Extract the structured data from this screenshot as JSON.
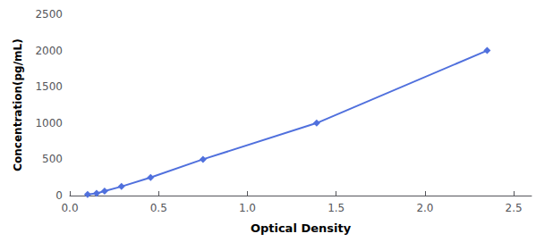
{
  "chart_data": {
    "type": "line",
    "xlabel": "Optical Density",
    "ylabel": "Concentration(pg/mL)",
    "x": [
      0.1,
      0.151,
      0.196,
      0.291,
      0.455,
      0.75,
      1.39,
      2.35
    ],
    "values": [
      15.6,
      31.2,
      62.5,
      125,
      250,
      500,
      1000,
      2000
    ],
    "xlim": [
      0,
      2.6
    ],
    "ylim": [
      0,
      2500
    ],
    "xticks": [
      {
        "value": 0,
        "label": "0.0"
      },
      0.5,
      {
        "value": 1,
        "label": "1.0"
      },
      1.5,
      {
        "value": 2,
        "label": "2.0"
      },
      2.5
    ],
    "yticks": [
      0,
      500,
      1000,
      1500,
      2000,
      2500
    ],
    "grid": false,
    "marker": "diamond",
    "line_style": "solid"
  }
}
